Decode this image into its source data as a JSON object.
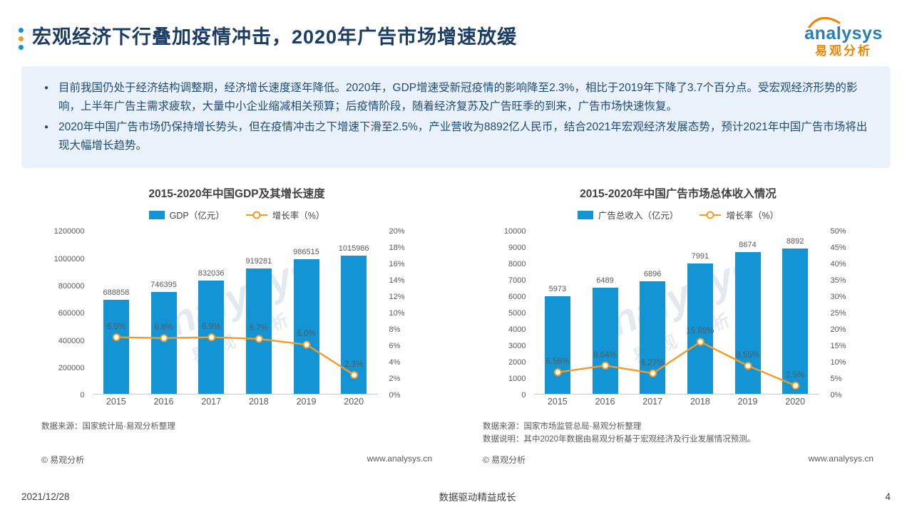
{
  "page": {
    "title": "宏观经济下行叠加疫情冲击，2020年广告市场增速放缓",
    "logo": {
      "brand": "analysys",
      "sub": "易观分析"
    },
    "watermark": "analysys",
    "watermark_sub": "易观分析",
    "footer": {
      "date": "2021/12/28",
      "slogan": "数据驱动精益成长",
      "page_number": "4"
    }
  },
  "summary": {
    "bullets": [
      "目前我国仍处于经济结构调整期，经济增长速度逐年降低。2020年，GDP增速受新冠疫情的影响降至2.3%，相比于2019年下降了3.7个百分点。受宏观经济形势的影响，上半年广告主需求疲软，大量中小企业缩减相关预算；后疫情阶段，随着经济复苏及广告旺季的到来，广告市场快速恢复。",
      "2020年中国广告市场仍保持增长势头，但在疫情冲击之下增速下滑至2.5%，产业营收为8892亿人民币，结合2021年宏观经济发展态势，预计2021年中国广告市场将出现大幅增长趋势。"
    ]
  },
  "chart_data": [
    {
      "type": "bar",
      "title": "2015-2020年中国GDP及其增长速度",
      "categories": [
        "2015",
        "2016",
        "2017",
        "2018",
        "2019",
        "2020"
      ],
      "series": [
        {
          "name": "GDP（亿元）",
          "kind": "bar",
          "values": [
            688858,
            746395,
            832036,
            919281,
            986515,
            1015986
          ]
        },
        {
          "name": "增长率（%）",
          "kind": "line",
          "values": [
            6.9,
            6.8,
            6.9,
            6.7,
            6.0,
            2.3
          ],
          "labels": [
            "6.9%",
            "6.8%",
            "6.9%",
            "6.7%",
            "6.0%",
            "2.3%"
          ]
        }
      ],
      "left_axis": {
        "min": 0,
        "max": 1200000,
        "step": 200000
      },
      "right_axis": {
        "min": 0,
        "max": 20,
        "step": 2,
        "suffix": "%"
      },
      "grid": false,
      "legend_position": "top",
      "source": "数据来源：国家统计局·易观分析整理",
      "note": "",
      "copyright": "© 易观分析",
      "site": "www.analysys.cn"
    },
    {
      "type": "bar",
      "title": "2015-2020年中国广告市场总体收入情况",
      "categories": [
        "2015",
        "2016",
        "2017",
        "2018",
        "2019",
        "2020"
      ],
      "series": [
        {
          "name": "广告总收入（亿元）",
          "kind": "bar",
          "values": [
            5973,
            6489,
            6896,
            7991,
            8674,
            8892
          ]
        },
        {
          "name": "增长率（%）",
          "kind": "line",
          "values": [
            6.56,
            8.64,
            6.27,
            15.88,
            8.55,
            2.5
          ],
          "labels": [
            "6.56%",
            "8.64%",
            "6.27%",
            "15.88%",
            "8.55%",
            "2.5%"
          ]
        }
      ],
      "left_axis": {
        "min": 0,
        "max": 10000,
        "step": 1000
      },
      "right_axis": {
        "min": 0,
        "max": 50,
        "step": 5,
        "suffix": "%"
      },
      "grid": false,
      "legend_position": "top",
      "source": "数据来源：国家市场监管总局·易观分析整理",
      "note": "数据说明：其中2020年数据由易观分析基于宏观经济及行业发展情况预测。",
      "copyright": "© 易观分析",
      "site": "www.analysys.cn"
    }
  ],
  "colors": {
    "bar": "#1394D5",
    "line": "#F59A23",
    "title": "#1B3C64",
    "body_text": "#1F4A73",
    "summary_bg": "#E9F2FA",
    "logo_blue": "#2A7DB8",
    "logo_orange": "#F08300",
    "axis_text": "#595959"
  }
}
